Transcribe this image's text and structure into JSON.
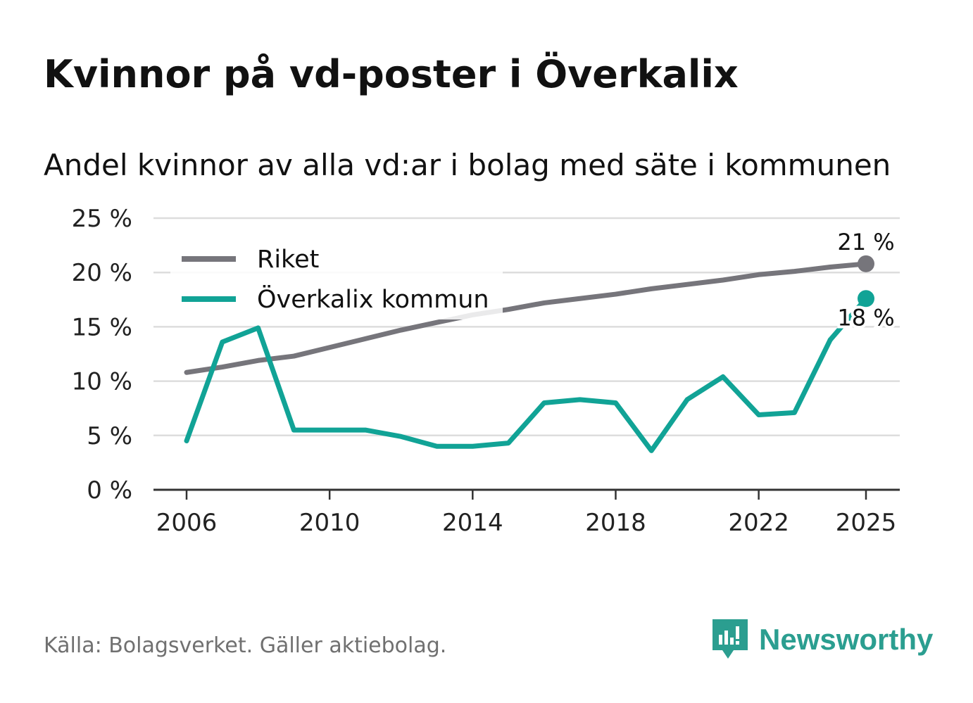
{
  "title": "Kvinnor på vd-poster i Överkalix",
  "subtitle": "Andel kvinnor av alla vd:ar i bolag med säte i kommunen",
  "source": "Källa: Bolagsverket. Gäller aktiebolag.",
  "brand": "Newsworthy",
  "colors": {
    "riket": "#76757b",
    "kommun": "#11a396",
    "grid": "#dddddd",
    "axis": "#333333"
  },
  "chart_data": {
    "type": "line",
    "ylim": [
      0,
      25
    ],
    "yticks": [
      0,
      5,
      10,
      15,
      20,
      25
    ],
    "ytick_labels": [
      "0 %",
      "5 %",
      "10 %",
      "15 %",
      "20 %",
      "25 %"
    ],
    "xlim": [
      2006,
      2025
    ],
    "xticks": [
      2006,
      2010,
      2014,
      2018,
      2022,
      2025
    ],
    "xtick_labels": [
      "2006",
      "2010",
      "2014",
      "2018",
      "2022",
      "2025"
    ],
    "x": [
      2006,
      2007,
      2008,
      2009,
      2010,
      2011,
      2012,
      2013,
      2014,
      2015,
      2016,
      2017,
      2018,
      2019,
      2020,
      2021,
      2022,
      2023,
      2024,
      2025
    ],
    "series": [
      {
        "name": "Riket",
        "color": "#76757b",
        "values": [
          10.8,
          11.3,
          11.9,
          12.3,
          13.1,
          13.9,
          14.7,
          15.4,
          16.1,
          16.6,
          17.2,
          17.6,
          18.0,
          18.5,
          18.9,
          19.3,
          19.8,
          20.1,
          20.5,
          20.8
        ],
        "end_label": "21 %"
      },
      {
        "name": "Överkalix kommun",
        "color": "#11a396",
        "values": [
          4.5,
          13.6,
          14.9,
          5.5,
          5.5,
          5.5,
          4.9,
          4.0,
          4.0,
          4.3,
          8.0,
          8.3,
          8.0,
          3.6,
          8.3,
          10.4,
          6.9,
          7.1,
          13.8,
          17.6
        ],
        "end_label": "18 %"
      }
    ],
    "legend": [
      "Riket",
      "Överkalix kommun"
    ],
    "legend_position": "top-left"
  }
}
